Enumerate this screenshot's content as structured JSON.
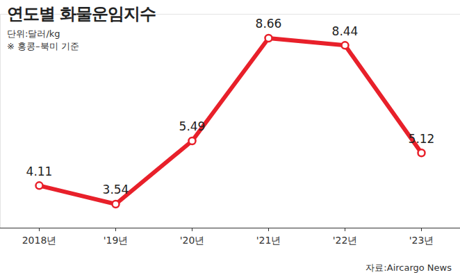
{
  "chart_data": {
    "type": "line",
    "title": "연도별 화물운임지수",
    "subtitle": "단위:달러/kg",
    "annotations": [
      "※ 홍콩–북미 기준"
    ],
    "source": "자료:Aircargo News",
    "categories": [
      "2018년",
      "'19년",
      "'20년",
      "'21년",
      "'22년",
      "'23년"
    ],
    "values": [
      4.11,
      3.54,
      5.49,
      8.66,
      8.44,
      5.12
    ],
    "color": "#e8202a",
    "marker": "circle",
    "data_labels": true,
    "tick_labels": "x",
    "grid": false,
    "ylim": [
      2.8,
      9.4
    ],
    "yticks": []
  }
}
